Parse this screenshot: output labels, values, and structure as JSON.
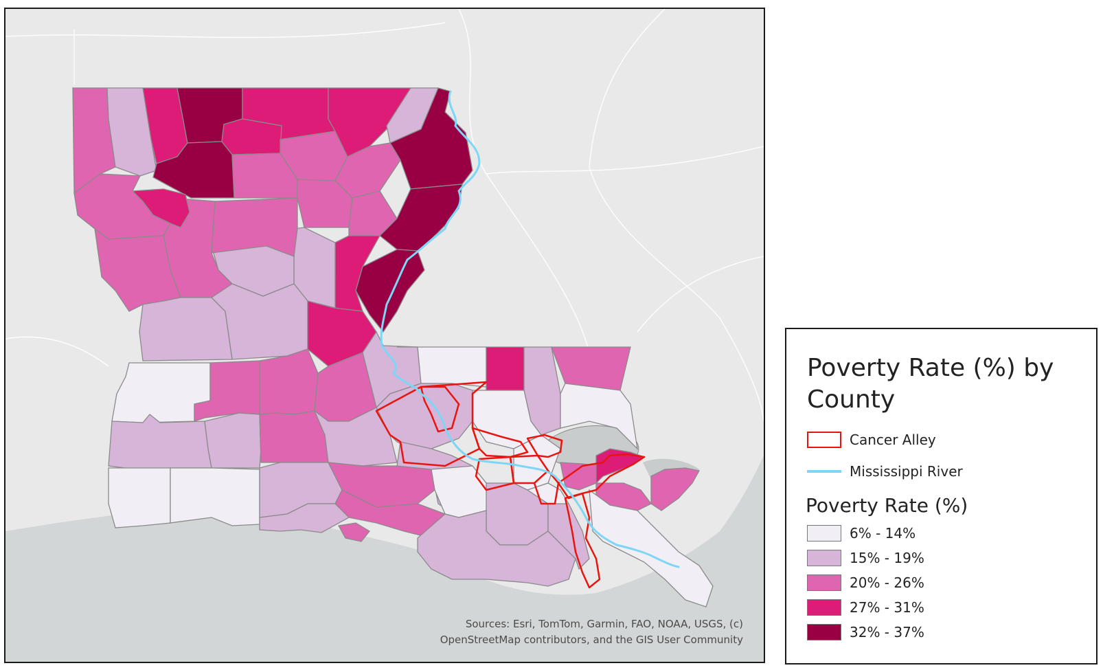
{
  "map": {
    "attribution_line1": "Sources:  Esri, TomTom, Garmin, FAO, NOAA, USGS, (c)",
    "attribution_line2": "OpenStreetMap contributors, and the GIS User Community",
    "colors": {
      "land": "#e9e9e9",
      "water": "#d3d6d6",
      "county_border": "#8a8a8a",
      "cancer_alley": "#e8150f",
      "river": "#7dd6f5"
    }
  },
  "legend": {
    "title": "Poverty Rate (%) by County",
    "cancer_alley_label": "Cancer Alley",
    "river_label": "Mississippi River",
    "subtitle": "Poverty Rate (%)",
    "classes": [
      {
        "label": "6% - 14%",
        "color": "#f1eef6"
      },
      {
        "label": "15% - 19%",
        "color": "#d7b5d8"
      },
      {
        "label": "20% - 26%",
        "color": "#df65b0"
      },
      {
        "label": "27% - 31%",
        "color": "#dd1c77"
      },
      {
        "label": "32% - 37%",
        "color": "#980043"
      }
    ]
  }
}
